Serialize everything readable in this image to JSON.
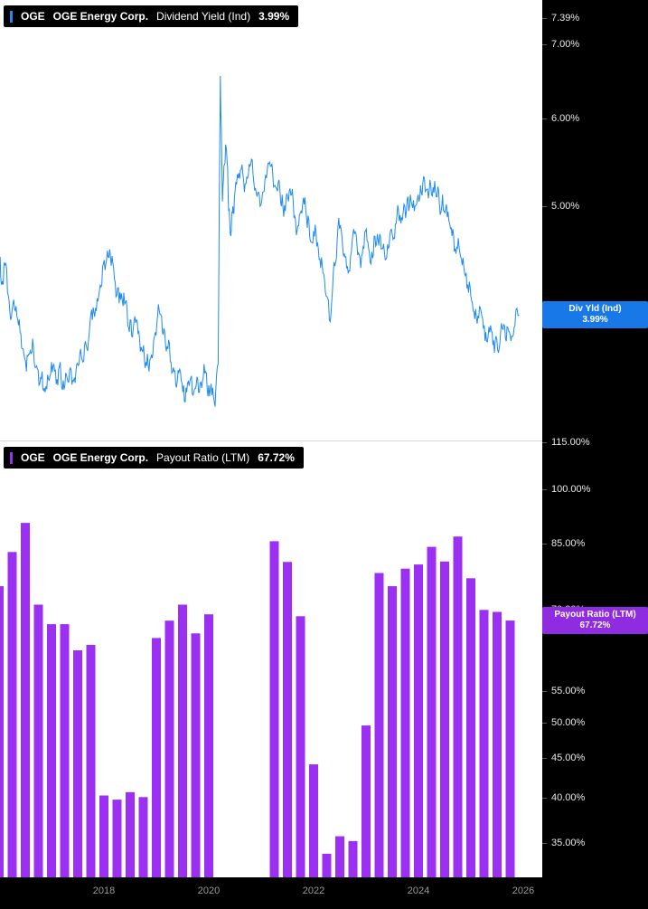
{
  "colors": {
    "background": "#000000",
    "panel_background": "#ffffff",
    "dividend_line": "#1f8af0",
    "dividend_badge": "#1878e8",
    "payout_bar": "#9b30f2",
    "payout_badge": "#8f2be0",
    "axis_text": "#e8e8e8",
    "xaxis_text": "#9a9a9a"
  },
  "top": {
    "legend_ticker": "OGE",
    "legend_company": "OGE Energy Corp.",
    "legend_metric": "Dividend Yield (Ind)",
    "legend_value": "3.99%",
    "badge_line1": "Div Yld (Ind)",
    "badge_line2": "3.99%"
  },
  "bottom": {
    "legend_ticker": "OGE",
    "legend_company": "OGE Energy Corp.",
    "legend_metric": "Payout Ratio (LTM)",
    "legend_value": "67.72%",
    "badge_line1": "Payout Ratio (LTM)",
    "badge_line2": "67.72%"
  },
  "chart_data": [
    {
      "type": "line",
      "title": "OGE Energy Corp. Dividend Yield (Ind)",
      "series": [
        {
          "name": "Div Yld (Ind)",
          "last_value": 3.99
        }
      ],
      "ylabel": "Dividend Yield (%)",
      "y_scale": "log",
      "y_ticks": [
        7.39,
        7.0,
        6.0,
        5.0,
        4.0
      ],
      "x_ticks": [
        2018,
        2020,
        2022,
        2024,
        2026
      ],
      "x_range": [
        2016.0,
        2026.3
      ],
      "grid": false,
      "legend_position": "top-left",
      "points": [
        [
          2016.02,
          4.5
        ],
        [
          2016.06,
          4.28
        ],
        [
          2016.1,
          4.45
        ],
        [
          2016.16,
          4.18
        ],
        [
          2016.22,
          3.95
        ],
        [
          2016.28,
          4.12
        ],
        [
          2016.34,
          3.98
        ],
        [
          2016.4,
          3.85
        ],
        [
          2016.46,
          3.72
        ],
        [
          2016.52,
          3.55
        ],
        [
          2016.58,
          3.68
        ],
        [
          2016.64,
          3.8
        ],
        [
          2016.7,
          3.58
        ],
        [
          2016.76,
          3.45
        ],
        [
          2016.82,
          3.55
        ],
        [
          2016.88,
          3.4
        ],
        [
          2016.94,
          3.5
        ],
        [
          2017.0,
          3.62
        ],
        [
          2017.06,
          3.55
        ],
        [
          2017.12,
          3.45
        ],
        [
          2017.18,
          3.52
        ],
        [
          2017.24,
          3.42
        ],
        [
          2017.3,
          3.5
        ],
        [
          2017.36,
          3.58
        ],
        [
          2017.42,
          3.48
        ],
        [
          2017.48,
          3.6
        ],
        [
          2017.54,
          3.68
        ],
        [
          2017.6,
          3.62
        ],
        [
          2017.66,
          3.75
        ],
        [
          2017.72,
          3.85
        ],
        [
          2017.78,
          3.95
        ],
        [
          2017.84,
          4.05
        ],
        [
          2017.9,
          4.15
        ],
        [
          2017.96,
          4.25
        ],
        [
          2018.02,
          4.38
        ],
        [
          2018.08,
          4.5
        ],
        [
          2018.14,
          4.42
        ],
        [
          2018.2,
          4.3
        ],
        [
          2018.26,
          4.22
        ],
        [
          2018.32,
          4.12
        ],
        [
          2018.38,
          4.18
        ],
        [
          2018.44,
          4.05
        ],
        [
          2018.5,
          3.95
        ],
        [
          2018.56,
          3.88
        ],
        [
          2018.62,
          3.95
        ],
        [
          2018.68,
          3.8
        ],
        [
          2018.74,
          3.7
        ],
        [
          2018.8,
          3.62
        ],
        [
          2018.86,
          3.55
        ],
        [
          2018.92,
          3.65
        ],
        [
          2018.98,
          3.85
        ],
        [
          2019.04,
          4.08
        ],
        [
          2019.1,
          3.98
        ],
        [
          2019.16,
          3.85
        ],
        [
          2019.22,
          3.72
        ],
        [
          2019.28,
          3.62
        ],
        [
          2019.34,
          3.55
        ],
        [
          2019.4,
          3.48
        ],
        [
          2019.46,
          3.55
        ],
        [
          2019.52,
          3.45
        ],
        [
          2019.58,
          3.4
        ],
        [
          2019.64,
          3.48
        ],
        [
          2019.7,
          3.38
        ],
        [
          2019.76,
          3.45
        ],
        [
          2019.82,
          3.4
        ],
        [
          2019.88,
          3.48
        ],
        [
          2019.94,
          3.55
        ],
        [
          2020.0,
          3.45
        ],
        [
          2020.06,
          3.38
        ],
        [
          2020.12,
          3.3
        ],
        [
          2020.18,
          3.6
        ],
        [
          2020.22,
          6.55
        ],
        [
          2020.26,
          5.05
        ],
        [
          2020.3,
          5.45
        ],
        [
          2020.34,
          5.6
        ],
        [
          2020.38,
          4.95
        ],
        [
          2020.42,
          4.7
        ],
        [
          2020.46,
          5.0
        ],
        [
          2020.5,
          5.15
        ],
        [
          2020.56,
          5.3
        ],
        [
          2020.62,
          5.4
        ],
        [
          2020.68,
          5.15
        ],
        [
          2020.74,
          5.3
        ],
        [
          2020.8,
          5.45
        ],
        [
          2020.86,
          5.25
        ],
        [
          2020.92,
          5.1
        ],
        [
          2020.98,
          5.0
        ],
        [
          2021.04,
          5.15
        ],
        [
          2021.1,
          5.3
        ],
        [
          2021.16,
          5.48
        ],
        [
          2021.22,
          5.35
        ],
        [
          2021.28,
          5.2
        ],
        [
          2021.34,
          5.28
        ],
        [
          2021.4,
          5.12
        ],
        [
          2021.46,
          4.95
        ],
        [
          2021.52,
          5.05
        ],
        [
          2021.58,
          5.12
        ],
        [
          2021.64,
          4.9
        ],
        [
          2021.7,
          4.8
        ],
        [
          2021.76,
          4.95
        ],
        [
          2021.82,
          5.02
        ],
        [
          2021.88,
          4.78
        ],
        [
          2021.94,
          4.65
        ],
        [
          2022.0,
          4.75
        ],
        [
          2022.06,
          4.6
        ],
        [
          2022.12,
          4.48
        ],
        [
          2022.18,
          4.35
        ],
        [
          2022.24,
          4.15
        ],
        [
          2022.3,
          3.95
        ],
        [
          2022.36,
          4.2
        ],
        [
          2022.42,
          4.45
        ],
        [
          2022.48,
          4.88
        ],
        [
          2022.54,
          4.7
        ],
        [
          2022.6,
          4.5
        ],
        [
          2022.66,
          4.35
        ],
        [
          2022.72,
          4.55
        ],
        [
          2022.78,
          4.72
        ],
        [
          2022.84,
          4.52
        ],
        [
          2022.9,
          4.4
        ],
        [
          2022.96,
          4.58
        ],
        [
          2023.02,
          4.65
        ],
        [
          2023.08,
          4.45
        ],
        [
          2023.14,
          4.52
        ],
        [
          2023.2,
          4.62
        ],
        [
          2023.26,
          4.72
        ],
        [
          2023.32,
          4.58
        ],
        [
          2023.38,
          4.48
        ],
        [
          2023.44,
          4.6
        ],
        [
          2023.5,
          4.72
        ],
        [
          2023.56,
          4.82
        ],
        [
          2023.62,
          4.95
        ],
        [
          2023.68,
          4.88
        ],
        [
          2023.74,
          5.0
        ],
        [
          2023.8,
          5.1
        ],
        [
          2023.86,
          5.05
        ],
        [
          2023.92,
          4.95
        ],
        [
          2023.98,
          5.08
        ],
        [
          2024.04,
          5.22
        ],
        [
          2024.1,
          5.32
        ],
        [
          2024.16,
          5.18
        ],
        [
          2024.22,
          5.28
        ],
        [
          2024.28,
          5.2
        ],
        [
          2024.34,
          5.1
        ],
        [
          2024.4,
          5.02
        ],
        [
          2024.46,
          5.12
        ],
        [
          2024.52,
          4.98
        ],
        [
          2024.58,
          4.85
        ],
        [
          2024.64,
          4.7
        ],
        [
          2024.7,
          4.58
        ],
        [
          2024.76,
          4.68
        ],
        [
          2024.82,
          4.48
        ],
        [
          2024.88,
          4.35
        ],
        [
          2024.94,
          4.25
        ],
        [
          2025.0,
          4.15
        ],
        [
          2025.06,
          4.02
        ],
        [
          2025.12,
          3.92
        ],
        [
          2025.18,
          4.05
        ],
        [
          2025.24,
          3.88
        ],
        [
          2025.3,
          3.78
        ],
        [
          2025.36,
          3.85
        ],
        [
          2025.42,
          3.75
        ],
        [
          2025.48,
          3.82
        ],
        [
          2025.54,
          3.72
        ],
        [
          2025.6,
          3.88
        ],
        [
          2025.66,
          3.8
        ],
        [
          2025.72,
          3.86
        ],
        [
          2025.78,
          3.82
        ],
        [
          2025.84,
          3.9
        ],
        [
          2025.92,
          3.99
        ]
      ]
    },
    {
      "type": "bar",
      "title": "OGE Energy Corp. Payout Ratio (LTM)",
      "series": [
        {
          "name": "Payout Ratio (LTM)",
          "last_value": 67.72
        }
      ],
      "ylabel": "Payout Ratio (%)",
      "y_scale": "log",
      "y_ticks": [
        115,
        100,
        85,
        70,
        55,
        50,
        45,
        40,
        35
      ],
      "x_ticks": [
        2018,
        2020,
        2022,
        2024,
        2026
      ],
      "grid": false,
      "legend_position": "top-left",
      "points": [
        [
          2016.0,
          75
        ],
        [
          2016.25,
          83
        ],
        [
          2016.5,
          90.5
        ],
        [
          2016.75,
          71
        ],
        [
          2017.0,
          67
        ],
        [
          2017.25,
          67
        ],
        [
          2017.5,
          62
        ],
        [
          2017.75,
          63
        ],
        [
          2018.0,
          40.3
        ],
        [
          2018.25,
          39.8
        ],
        [
          2018.5,
          40.7
        ],
        [
          2018.75,
          40.1
        ],
        [
          2019.0,
          64.3
        ],
        [
          2019.25,
          67.7
        ],
        [
          2019.5,
          71
        ],
        [
          2019.75,
          65.2
        ],
        [
          2020.0,
          69
        ],
        [
          2021.25,
          85.7
        ],
        [
          2021.5,
          80.6
        ],
        [
          2021.75,
          68.6
        ],
        [
          2022.0,
          44.2
        ],
        [
          2022.25,
          33.9
        ],
        [
          2022.5,
          35.7
        ],
        [
          2022.75,
          35.2
        ],
        [
          2023.0,
          49.6
        ],
        [
          2023.25,
          78
        ],
        [
          2023.5,
          75
        ],
        [
          2023.75,
          79
        ],
        [
          2024.0,
          80
        ],
        [
          2024.25,
          84.3
        ],
        [
          2024.5,
          80.7
        ],
        [
          2024.75,
          86.9
        ],
        [
          2025.0,
          76.8
        ],
        [
          2025.25,
          69.9
        ],
        [
          2025.5,
          69.5
        ],
        [
          2025.75,
          67.72
        ]
      ]
    }
  ]
}
